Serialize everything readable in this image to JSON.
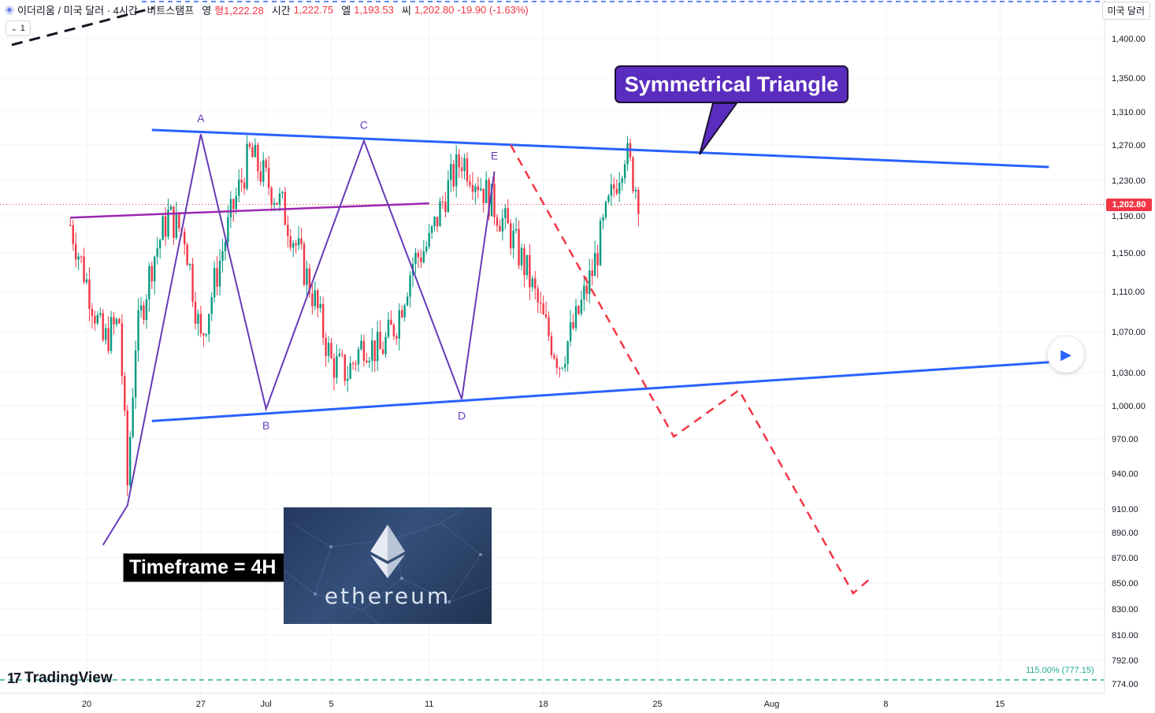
{
  "header": {
    "symbol_icon": "ethereum-icon",
    "title": "이더리움 / 미국 달러 · 4시간 · 비트스탬프",
    "open_label": "영",
    "open_value": "형1,222.28",
    "high_label": "시간",
    "high_value": "1,222.75",
    "low_label": "엘",
    "low_value": "1,193.53",
    "close_label": "씨",
    "close_value": "1,202.80",
    "change": "-19.90 (-1.63%)",
    "interval_badge": "1"
  },
  "currency_button": "미국 달러",
  "price_tag": "1,202.80",
  "callout_text": "Symmetrical Triangle",
  "timeframe_text": "Timeframe = 4H",
  "banner_text": "ethereum",
  "fib_label": "115.00% (777.15)",
  "branding": "TradingView",
  "colors": {
    "up": "#089981",
    "down": "#f23645",
    "trendline": "#2962ff",
    "wave": "#673ab7",
    "midline": "#9c27b0",
    "projection": "#f23645",
    "callout": "#5b2dbe",
    "fib": "#22ab94"
  },
  "chart_data": {
    "type": "candlestick",
    "y_axis": {
      "scale": "log",
      "range": [
        765,
        1420
      ],
      "ticks": [
        1400,
        1350,
        1310,
        1270,
        1230,
        1190,
        1150,
        1110,
        1070,
        1030,
        1000,
        970,
        940,
        910,
        890,
        870,
        850,
        830,
        810,
        792,
        774
      ],
      "tick_labels": [
        "1,400.00",
        "1,350.00",
        "1,310.00",
        "1,270.00",
        "1,230.00",
        "1,190.00",
        "1,150.00",
        "1,110.00",
        "1,070.00",
        "1,030.00",
        "1,000.00",
        "970.00",
        "940.00",
        "910.00",
        "890.00",
        "870.00",
        "850.00",
        "830.00",
        "810.00",
        "792.00",
        "774.00"
      ]
    },
    "x_axis": {
      "range": [
        "2022-06-19",
        "2022-08-18"
      ],
      "ticks": [
        "2022-06-20",
        "2022-06-27",
        "2022-07-01",
        "2022-07-05",
        "2022-07-11",
        "2022-07-18",
        "2022-07-25",
        "2022-08-01",
        "2022-08-08",
        "2022-08-15"
      ],
      "tick_labels": [
        "20",
        "27",
        "Jul",
        "5",
        "11",
        "18",
        "25",
        "Aug",
        "8",
        "15"
      ]
    },
    "last_price": 1202.8,
    "ohlc_path": [
      [
        "2022-06-19",
        1180
      ],
      [
        "2022-06-20",
        1120
      ],
      [
        "2022-06-21",
        1060
      ],
      [
        "2022-06-22",
        1080
      ],
      [
        "2022-06-22T12",
        930
      ],
      [
        "2022-06-23",
        1060
      ],
      [
        "2022-06-24",
        1140
      ],
      [
        "2022-06-25",
        1190
      ],
      [
        "2022-06-26",
        1170
      ],
      [
        "2022-06-27",
        1060
      ],
      [
        "2022-06-28",
        1130
      ],
      [
        "2022-06-29",
        1200
      ],
      [
        "2022-06-30",
        1260
      ],
      [
        "2022-07-01",
        1230
      ],
      [
        "2022-07-02",
        1200
      ],
      [
        "2022-07-03",
        1150
      ],
      [
        "2022-07-04",
        1100
      ],
      [
        "2022-07-05",
        1040
      ],
      [
        "2022-07-06",
        1030
      ],
      [
        "2022-07-07",
        1060
      ],
      [
        "2022-07-08",
        1050
      ],
      [
        "2022-07-09",
        1080
      ],
      [
        "2022-07-10",
        1140
      ],
      [
        "2022-07-11",
        1160
      ],
      [
        "2022-07-12",
        1215
      ],
      [
        "2022-07-13",
        1255
      ],
      [
        "2022-07-14",
        1230
      ],
      [
        "2022-07-15",
        1200
      ],
      [
        "2022-07-16",
        1170
      ],
      [
        "2022-07-17",
        1130
      ],
      [
        "2022-07-18",
        1080
      ],
      [
        "2022-07-19",
        1040
      ],
      [
        "2022-07-20",
        1080
      ],
      [
        "2022-07-21",
        1130
      ],
      [
        "2022-07-22",
        1200
      ],
      [
        "2022-07-23",
        1265
      ],
      [
        "2022-07-24",
        1202.8
      ]
    ],
    "patterns": {
      "resistance": [
        [
          "2022-06-24",
          1288
        ],
        [
          "2022-08-18",
          1245
        ]
      ],
      "support": [
        [
          "2022-06-24",
          986
        ],
        [
          "2022-08-18",
          1040
        ]
      ],
      "midline": [
        [
          "2022-06-19",
          1188
        ],
        [
          "2022-07-11",
          1204
        ]
      ],
      "waves": [
        {
          "label": "",
          "x": "2022-06-21",
          "y": 880
        },
        {
          "label": "",
          "x": "2022-06-22T12",
          "y": 913
        },
        {
          "label": "A",
          "x": "2022-06-27",
          "y": 1283
        },
        {
          "label": "B",
          "x": "2022-07-01",
          "y": 997
        },
        {
          "label": "C",
          "x": "2022-07-07",
          "y": 1275
        },
        {
          "label": "D",
          "x": "2022-07-13",
          "y": 1006
        },
        {
          "label": "E",
          "x": "2022-07-15",
          "y": 1240
        }
      ],
      "projection": [
        [
          "2022-07-16",
          1270
        ],
        [
          "2022-07-26",
          972
        ],
        [
          "2022-07-30",
          1014
        ],
        [
          "2022-08-06",
          842
        ],
        [
          "2022-08-07",
          853
        ]
      ],
      "fib_level": 777.15
    }
  }
}
